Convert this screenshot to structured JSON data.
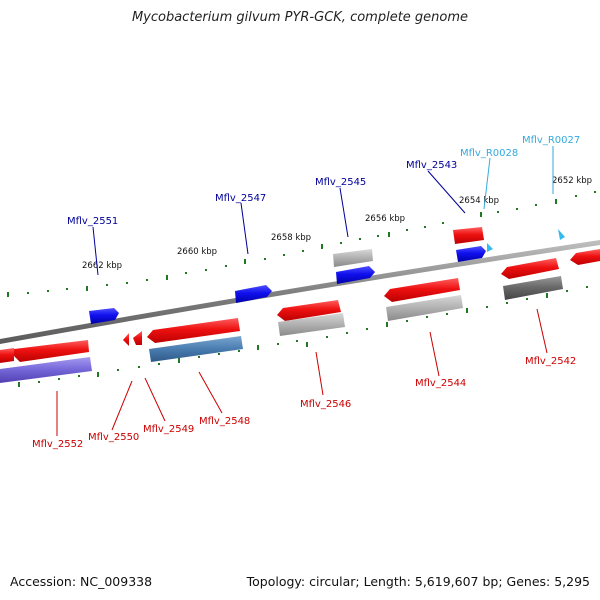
{
  "title": "Mycobacterium gilvum PYR-GCK, complete genome",
  "footer": {
    "accession": "Accession: NC_009338",
    "summary": "Topology: circular; Length: 5,619,607 bp; Genes: 5,295"
  },
  "ticks": [
    "2662 kbp",
    "2660 kbp",
    "2658 kbp",
    "2656 kbp",
    "2654 kbp",
    "2652 kbp"
  ],
  "genes_top": [
    "Mflv_2551",
    "Mflv_2547",
    "Mflv_2545",
    "Mflv_2543"
  ],
  "rna_top": [
    "Mflv_R0028",
    "Mflv_R0027"
  ],
  "genes_bottom": [
    "Mflv_2552",
    "Mflv_2550",
    "Mflv_2549",
    "Mflv_2548",
    "Mflv_2546",
    "Mflv_2544",
    "Mflv_2542"
  ],
  "colors": {
    "forward_gene": "#1010e8",
    "reverse_gene": "#e01010",
    "rna": "#33bbee",
    "label_top": "#000099",
    "label_bottom": "#cc0000",
    "label_rna": "#33aadd",
    "backbone": "#888888",
    "tick": "#227722"
  }
}
